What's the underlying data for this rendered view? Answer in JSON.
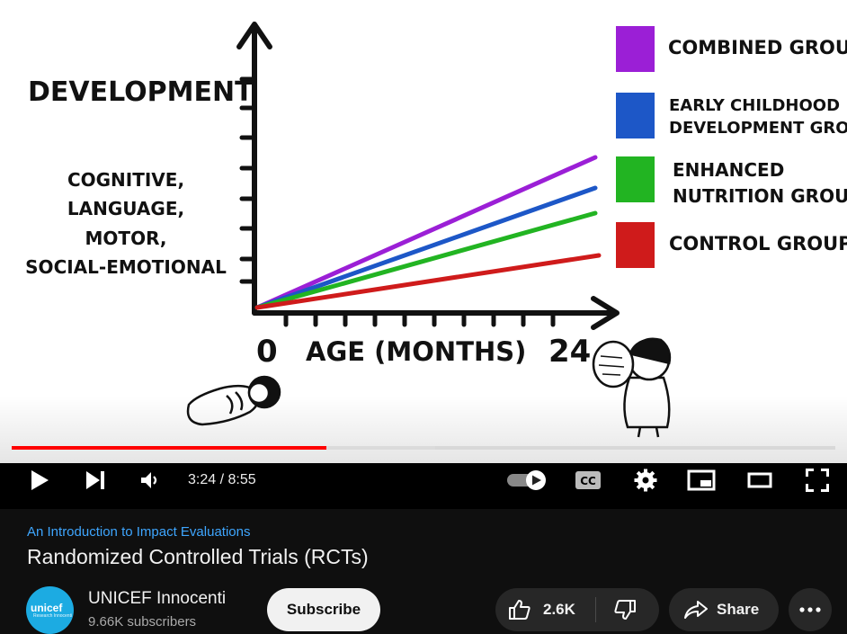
{
  "video": {
    "y_axis_title": "DEVELOPMENT",
    "y_axis_subtitle": [
      "COGNITIVE,",
      "LANGUAGE,",
      "MOTOR,",
      "SOCIAL-EMOTIONAL"
    ],
    "x_axis_start": "0",
    "x_axis_label": "AGE (MONTHS)",
    "x_axis_end": "24",
    "legend": [
      {
        "lines": [
          "COMBINED GROUP"
        ],
        "color": "#9b1fd6"
      },
      {
        "lines": [
          "EARLY CHILDHOOD",
          "DEVELOPMENT GROUP"
        ],
        "color": "#1d57c7"
      },
      {
        "lines": [
          "ENHANCED",
          "NUTRITION GROUP"
        ],
        "color": "#22b422"
      },
      {
        "lines": [
          "CONTROL GROUP"
        ],
        "color": "#cf1b1b"
      }
    ]
  },
  "player": {
    "current_time": "3:24",
    "duration": "8:55",
    "time_display": "3:24 / 8:55",
    "played_fraction": 0.382,
    "buffered_fraction": 0.514,
    "icons": [
      "play-icon",
      "next-icon",
      "volume-icon",
      "autoplay-toggle",
      "captions-icon",
      "settings-icon",
      "miniplayer-icon",
      "theater-icon",
      "fullscreen-icon"
    ]
  },
  "info": {
    "playlist": "An Introduction to Impact Evaluations",
    "title": "Randomized Controlled Trials (RCTs)",
    "channel": {
      "name": "UNICEF Innocenti",
      "subscribers": "9.66K subscribers",
      "avatar_text": "unicef",
      "avatar_subtext": "Research Innocenti"
    },
    "subscribe_label": "Subscribe",
    "likes": "2.6K",
    "share_label": "Share"
  },
  "colors": {
    "accent_red": "#ff0000",
    "link_blue": "#3ea6ff",
    "unicef_blue": "#1cabe2"
  }
}
